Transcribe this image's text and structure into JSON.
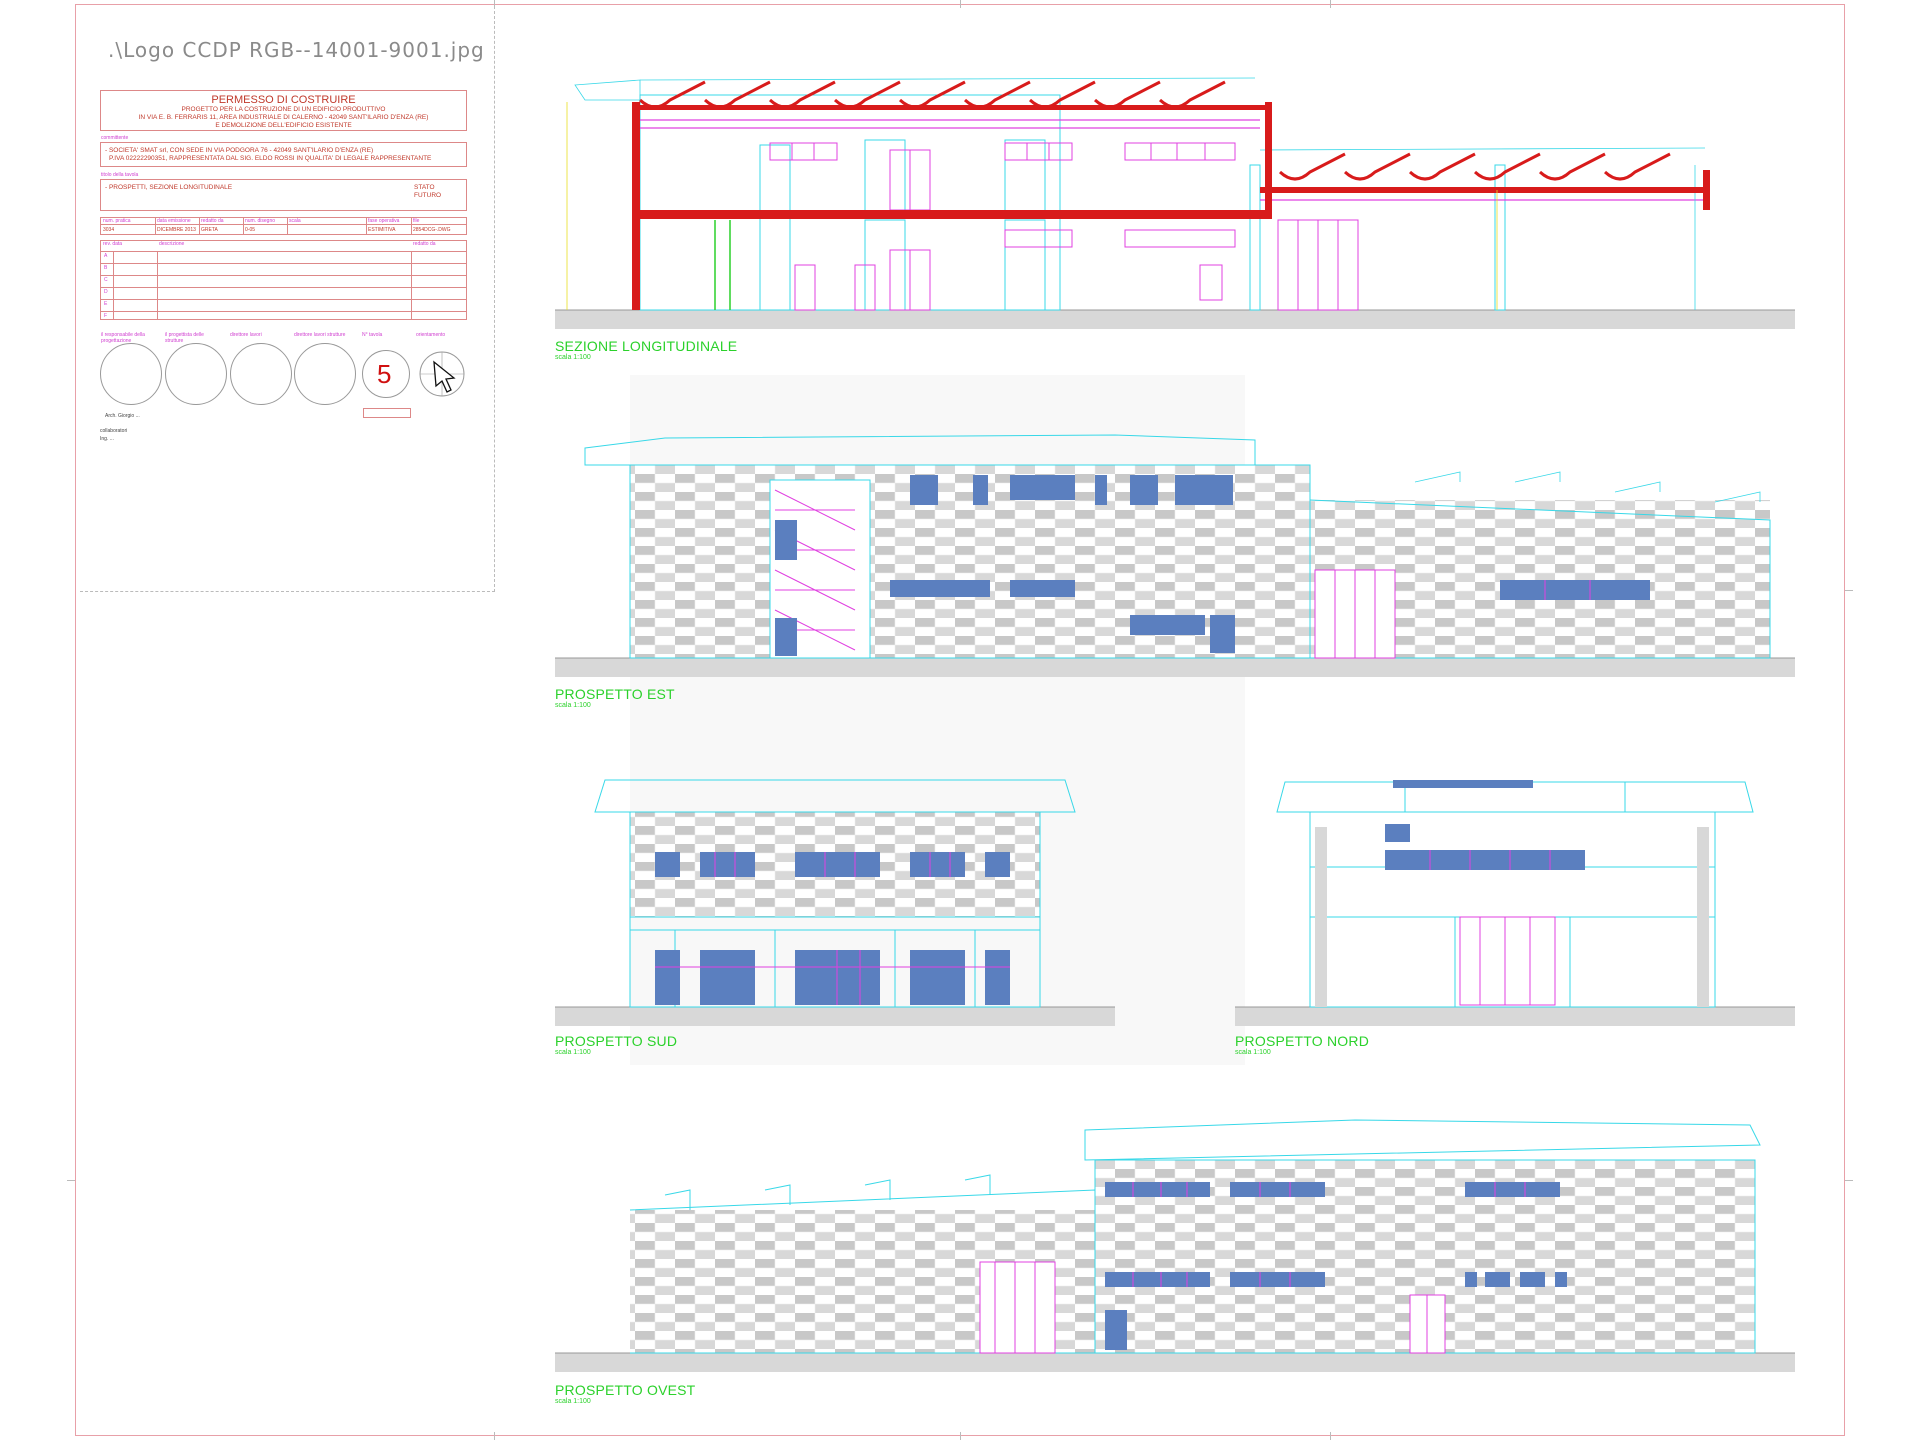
{
  "logo_text": ".\\Logo CCDP RGB--14001-9001.jpg",
  "permit": {
    "title": "PERMESSO DI COSTRUIRE",
    "subtitle_1": "PROGETTO PER LA COSTRUZIONE DI UN EDIFICIO PRODUTTIVO",
    "subtitle_2": "IN VIA E. B. FERRARIS 11, AREA INDUSTRIALE DI CALERNO - 42049 SANT'ILARIO D'ENZA (RE)",
    "subtitle_3": "E DEMOLIZIONE DELL'EDIFICIO ESISTENTE"
  },
  "client": {
    "label": "committente",
    "line_1": "- SOCIETA' SMAT srl, CON SEDE IN VIA PODGORA 76 - 42049 SANT'ILARIO D'ENZA (RE)",
    "line_2": "P.IVA 02222290351, RAPPRESENTATA DAL SIG. ELDO ROSSI IN QUALITA' DI LEGALE RAPPRESENTANTE"
  },
  "drawing_content": {
    "label": "titolo della tavola",
    "text": "- PROSPETTI, SEZIONE LONGITUDINALE",
    "state_1": "STATO",
    "state_2": "FUTURO"
  },
  "info_row": {
    "headers": [
      "num. pratica",
      "data emissione",
      "redatto da",
      "num. disegno",
      "scala",
      "fase operativa",
      "file"
    ],
    "values": [
      "3034",
      "DICEMBRE 2013",
      "GRETA",
      "0-05",
      "",
      "ESTIMITIVA",
      "2854DCG-.DWG"
    ]
  },
  "revisions": {
    "headers": [
      "rev. data",
      "descrizione",
      "redatto da"
    ],
    "rows": [
      "A",
      "B",
      "C",
      "D",
      "E",
      "F"
    ]
  },
  "signatures": {
    "labels": [
      "il responsabile della progettazione",
      "il progettista delle strutture",
      "direttore lavori",
      "direttore lavori strutture",
      "N° tavola",
      "orientamento"
    ],
    "sheet_number": "5",
    "designer": "Arch. Giorgio ..."
  },
  "collaborators": {
    "label": "collaboratori",
    "name": "Ing. ..."
  },
  "drawings": [
    {
      "title": "SEZIONE LONGITUDINALE",
      "scale": "scala 1:100"
    },
    {
      "title": "PROSPETTO EST",
      "scale": "scala 1:100"
    },
    {
      "title": "PROSPETTO SUD",
      "scale": "scala 1:100"
    },
    {
      "title": "PROSPETTO NORD",
      "scale": "scala 1:100"
    },
    {
      "title": "PROSPETTO OVEST",
      "scale": "scala 1:100"
    }
  ],
  "colors": {
    "section_cut": "#d81b1b",
    "outline_cyan": "#38d8e8",
    "detail_magenta": "#e040e0",
    "window_blue": "#5b7fbf",
    "label_green": "#2bd12b",
    "panel_gray": "#c8c8c8"
  }
}
